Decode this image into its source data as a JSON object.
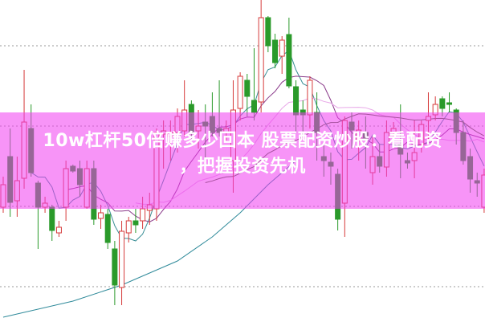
{
  "title": {
    "line1": "10w杠杆50倍赚多少回本 股票配资炒股：看配资",
    "line2": "，把握投资先机"
  },
  "colors": {
    "bull": "#d63a3a",
    "bear": "#2a9a2a",
    "banner": "#f794f7",
    "grid": "#9a9a9a",
    "ma5": "#3a8f96",
    "ma10": "#8a3a8a",
    "ma20": "#e8a8e8",
    "ma30": "#4f6a3a",
    "ma_long": "#2f8a9a"
  },
  "chart_data": {
    "type": "candlestick",
    "title": "",
    "grid": true,
    "grid_levels": [
      34.3,
      24.3,
      14.3,
      4.3
    ],
    "ylim": [
      0,
      40
    ],
    "ohlc_fields": [
      "open",
      "high",
      "low",
      "close"
    ],
    "candles": [
      [
        14.2,
        18,
        13.5,
        17
      ],
      [
        20.5,
        24,
        13,
        14.8
      ],
      [
        15,
        20.5,
        13,
        17.5
      ],
      [
        17.8,
        31.3,
        16.5,
        24.8
      ],
      [
        24,
        27,
        18,
        18.5
      ],
      [
        17.2,
        17.5,
        9,
        14.2
      ],
      [
        14.2,
        15.5,
        13.5,
        14.7
      ],
      [
        14.2,
        14.5,
        10,
        11.3
      ],
      [
        11,
        12.5,
        10.5,
        11.7
      ],
      [
        14.2,
        20,
        12.5,
        19
      ],
      [
        19.3,
        19.5,
        18.5,
        18.7
      ],
      [
        19,
        20,
        15.5,
        17
      ],
      [
        14.2,
        20,
        14,
        19
      ],
      [
        19,
        20,
        12,
        12.7
      ],
      [
        12.8,
        14.5,
        11.5,
        13.5
      ],
      [
        13.3,
        14,
        9,
        9.8
      ],
      [
        9,
        10,
        2,
        4.5
      ],
      [
        4.2,
        12.5,
        2,
        11.2
      ],
      [
        11,
        13,
        9.8,
        12.5
      ],
      [
        12.5,
        14,
        11,
        12
      ],
      [
        12.5,
        15.5,
        11.5,
        14
      ],
      [
        13.8,
        16,
        12,
        14.5
      ],
      [
        14,
        24,
        12.5,
        23.5
      ],
      [
        23.3,
        25,
        19,
        23.7
      ],
      [
        23,
        25,
        20,
        23.5
      ],
      [
        23.5,
        26.5,
        21,
        25.5
      ],
      [
        23.7,
        30,
        23,
        26.3
      ],
      [
        27,
        27.5,
        22.5,
        23.5
      ],
      [
        23.7,
        26.3,
        21.5,
        24.3
      ],
      [
        24.8,
        27,
        20,
        24.3
      ],
      [
        25.5,
        28.5,
        23,
        23.5
      ],
      [
        24,
        30,
        23,
        23.5
      ],
      [
        23.5,
        25,
        22.5,
        24
      ],
      [
        20,
        30,
        16,
        26.3
      ],
      [
        26.5,
        31,
        25,
        30.5
      ],
      [
        30,
        30.8,
        25.5,
        28
      ],
      [
        27.5,
        34,
        25,
        26
      ],
      [
        27.3,
        40,
        26,
        37.8
      ],
      [
        37.8,
        38,
        33.5,
        34.3
      ],
      [
        35,
        35.8,
        31.5,
        32.2
      ],
      [
        33,
        35.5,
        30.8,
        35
      ],
      [
        35.7,
        37.8,
        29,
        29.3
      ],
      [
        29.2,
        30,
        23.5,
        25.7
      ],
      [
        26.3,
        27.5,
        23,
        25.7
      ],
      [
        25.7,
        30.5,
        24,
        30
      ],
      [
        26,
        28.5,
        20,
        23.5
      ],
      [
        20.5,
        22,
        18,
        20
      ],
      [
        19.8,
        21,
        17,
        19.3
      ],
      [
        18.3,
        19,
        11.3,
        12.7
      ],
      [
        14.7,
        25.5,
        10.5,
        25
      ],
      [
        24.8,
        26,
        21.5,
        23.8
      ],
      [
        22.5,
        25,
        20,
        23.8
      ],
      [
        23.5,
        25.5,
        19,
        22.8
      ],
      [
        18.5,
        23,
        17,
        20.5
      ],
      [
        20.5,
        22,
        18.5,
        19.3
      ],
      [
        19.2,
        25,
        18,
        23.5
      ],
      [
        23.5,
        24.8,
        22.5,
        24
      ],
      [
        22,
        27,
        17.8,
        20.8
      ],
      [
        20,
        21,
        19,
        19.7
      ],
      [
        20,
        25,
        17.8,
        21
      ],
      [
        22,
        25,
        21,
        24.5
      ],
      [
        25,
        28.5,
        22.5,
        25.5
      ],
      [
        25.7,
        28,
        25,
        27
      ],
      [
        27.7,
        28,
        25.5,
        26.5
      ],
      [
        27.2,
        28.5,
        26,
        27
      ],
      [
        26.3,
        26.5,
        22,
        23.5
      ],
      [
        23.5,
        25,
        19.5,
        20
      ],
      [
        20.5,
        21.5,
        16,
        17.7
      ],
      [
        17.5,
        18.5,
        15.5,
        17.2
      ],
      [
        14.2,
        19,
        13.5,
        18.2
      ]
    ],
    "moving_averages": [
      5,
      10,
      20,
      30
    ],
    "long_ma": {
      "indices": [
        0,
        10,
        17,
        25,
        30,
        34,
        38,
        42
      ],
      "values": [
        0.5,
        2.5,
        4.5,
        7.5,
        10.5,
        13.5,
        17,
        20
      ]
    }
  }
}
